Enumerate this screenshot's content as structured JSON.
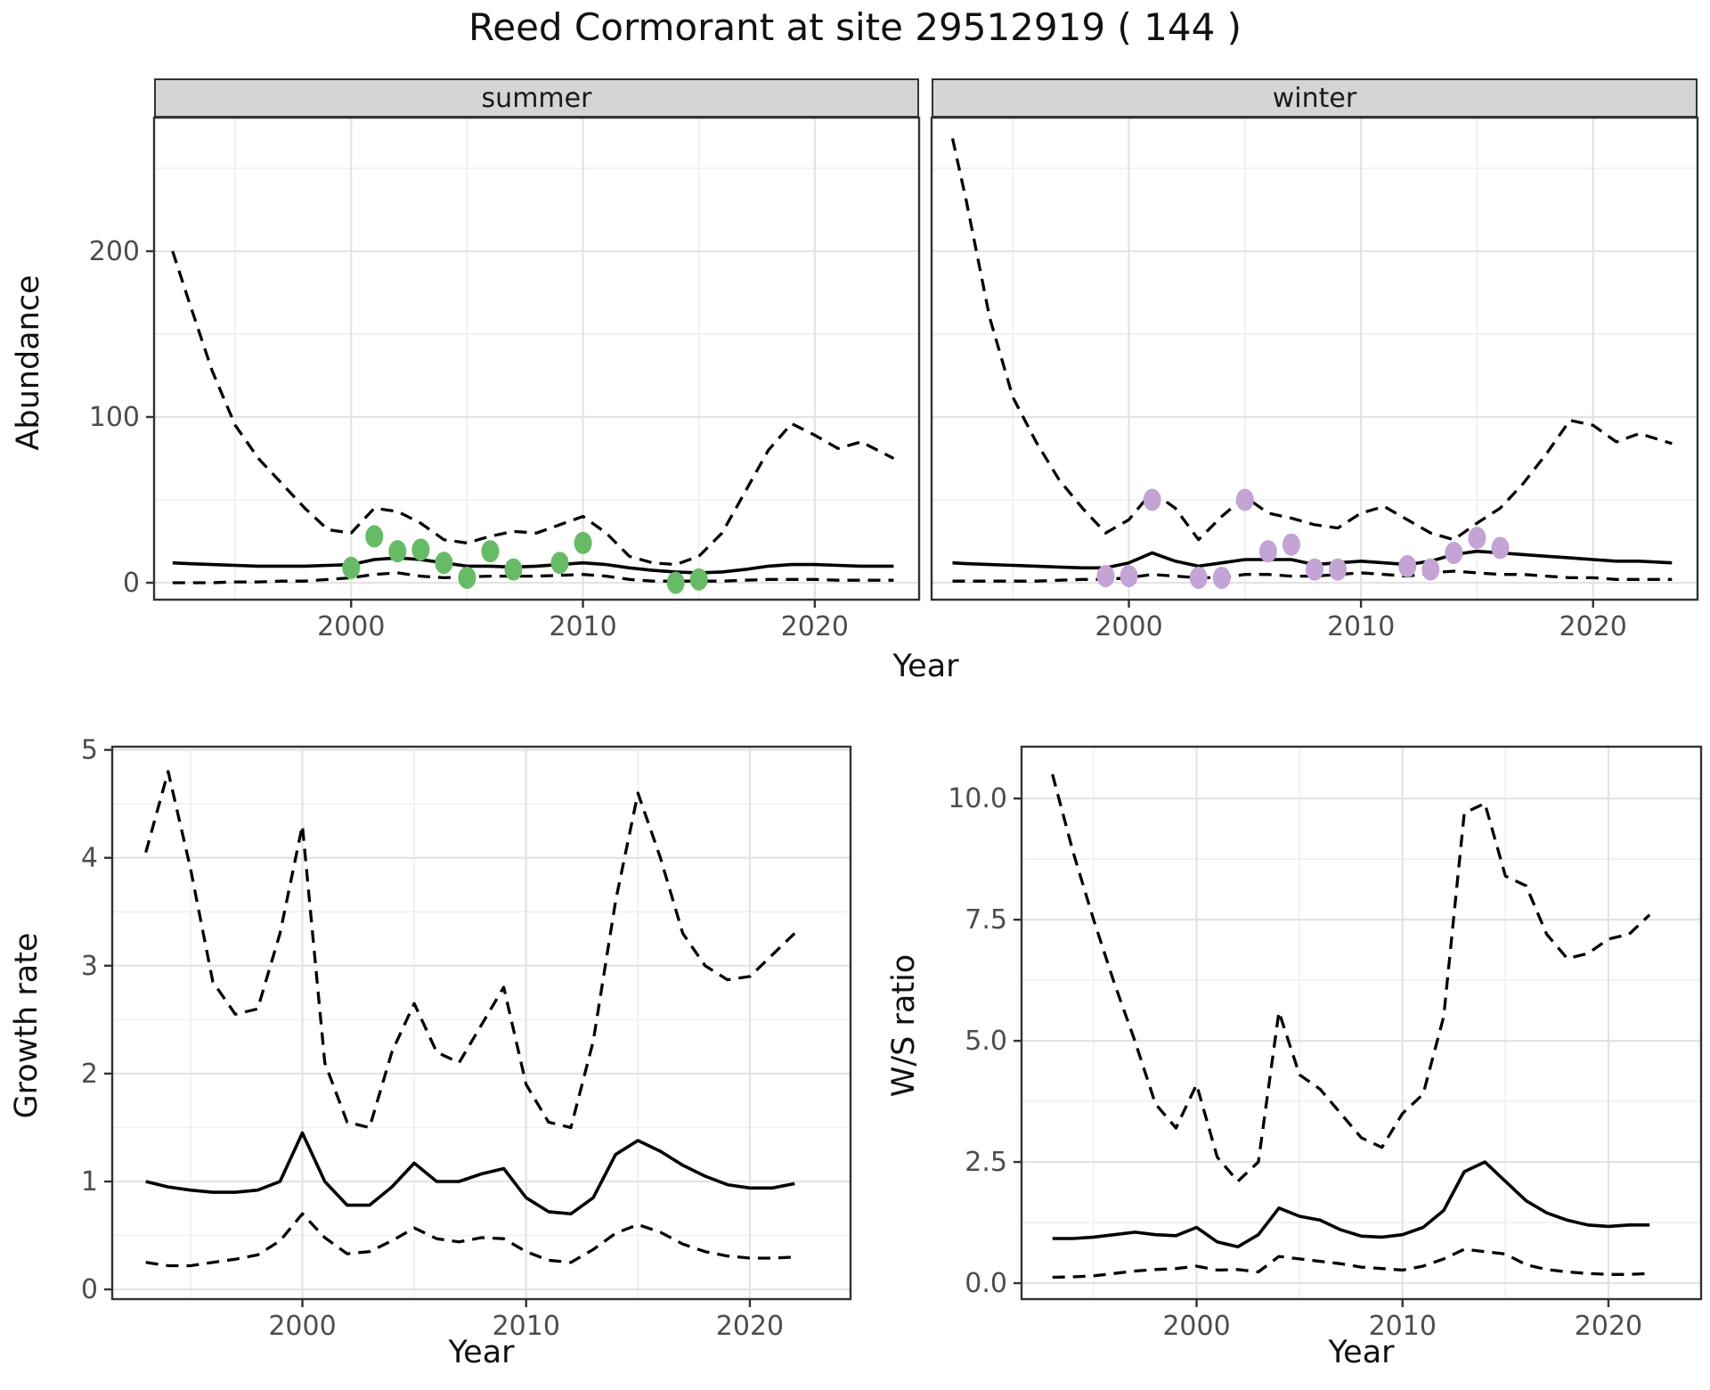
{
  "title": "Reed Cormorant at site 29512919 ( 144 )",
  "labels": {
    "year_axis_top": "Year",
    "year_axis_growth": "Year",
    "year_axis_ws": "Year",
    "abundance_axis": "Abundance",
    "growth_axis": "Growth rate",
    "ws_axis": "W/S ratio",
    "facet_summer": "summer",
    "facet_winter": "winter"
  },
  "colors": {
    "summer_point": "#67bb67",
    "winter_point": "#c3a4d5",
    "line": "#000000",
    "grid_major": "#e3e3e3",
    "grid_minor": "#efefef",
    "panel_border": "#333333",
    "strip_bg": "#d5d5d5",
    "tick_text": "#4d4d4d",
    "tick_mark": "#333333"
  },
  "chart_data": [
    {
      "id": "abundance_summer",
      "type": "line",
      "facet": "summer",
      "title": "Abundance — summer facet",
      "xlabel": "Year",
      "ylabel": "Abundance",
      "xlim": [
        1991.5,
        2024.5
      ],
      "ylim": [
        -10.2,
        280.6
      ],
      "x_ticks": [
        2000,
        2010,
        2020
      ],
      "x_tick_labels": [
        "2000",
        "2010",
        "2020"
      ],
      "x_minor_ticks": [
        1995,
        2005,
        2015
      ],
      "y_ticks": [
        0,
        100,
        200
      ],
      "y_tick_labels": [
        "0",
        "100",
        "200"
      ],
      "y_minor_ticks": [
        50,
        150,
        250
      ],
      "grid": true,
      "legend_position": "none",
      "series": [
        {
          "name": "upper_ci",
          "style": "dashed",
          "x": [
            1992.3,
            1993,
            1994,
            1995,
            1996,
            1997,
            1998,
            1999,
            2000,
            2001,
            2002,
            2003,
            2004,
            2005,
            2006,
            2007,
            2008,
            2009,
            2010,
            2011,
            2012,
            2013,
            2014,
            2015,
            2016,
            2017,
            2018,
            2019,
            2020,
            2021,
            2022,
            2023.4
          ],
          "y": [
            200,
            170,
            128,
            95,
            75,
            60,
            45,
            32,
            30,
            45,
            43,
            36,
            26,
            24,
            28,
            31,
            30,
            35,
            40,
            30,
            16,
            12,
            11,
            16,
            30,
            55,
            80,
            96,
            89,
            81,
            85,
            75
          ]
        },
        {
          "name": "median_fit",
          "style": "solid",
          "x": [
            1992.3,
            1993,
            1994,
            1995,
            1996,
            1997,
            1998,
            1999,
            2000,
            2001,
            2002,
            2003,
            2004,
            2005,
            2006,
            2007,
            2008,
            2009,
            2010,
            2011,
            2012,
            2013,
            2014,
            2015,
            2016,
            2017,
            2018,
            2019,
            2020,
            2021,
            2022,
            2023.4
          ],
          "y": [
            12,
            11.5,
            11,
            10.5,
            10,
            10,
            10,
            10.5,
            11,
            14,
            15,
            14,
            12,
            10,
            10,
            9.5,
            10,
            11,
            12,
            11,
            9,
            7.5,
            6.5,
            6,
            6.5,
            8,
            10,
            11,
            11,
            10.5,
            10,
            10
          ]
        },
        {
          "name": "lower_ci",
          "style": "dashed",
          "x": [
            1992.3,
            1993,
            1994,
            1995,
            1996,
            1997,
            1998,
            1999,
            2000,
            2001,
            2002,
            2003,
            2004,
            2005,
            2006,
            2007,
            2008,
            2009,
            2010,
            2011,
            2012,
            2013,
            2014,
            2015,
            2016,
            2017,
            2018,
            2019,
            2020,
            2021,
            2022,
            2023.4
          ],
          "y": [
            0,
            0,
            0,
            0.5,
            0.5,
            1,
            1,
            2,
            3,
            5,
            6,
            4,
            3,
            3.5,
            4,
            4,
            4,
            4.5,
            5,
            4,
            2,
            1,
            1,
            1,
            1,
            1.5,
            2,
            2,
            2,
            1.5,
            1.5,
            1.5
          ]
        }
      ],
      "points": {
        "name": "observed_counts_summer",
        "color_key": "summer_point",
        "x": [
          2000,
          2001,
          2002,
          2003,
          2004,
          2005,
          2006,
          2007,
          2009,
          2010,
          2014,
          2015
        ],
        "y": [
          9,
          28,
          19,
          20,
          12,
          3,
          19,
          8,
          12,
          24,
          0,
          2
        ]
      }
    },
    {
      "id": "abundance_winter",
      "type": "line",
      "facet": "winter",
      "title": "Abundance — winter facet",
      "xlabel": "Year",
      "ylabel": "Abundance",
      "xlim": [
        1991.5,
        2024.5
      ],
      "ylim": [
        -10.2,
        280.6
      ],
      "x_ticks": [
        2000,
        2010,
        2020
      ],
      "x_tick_labels": [
        "2000",
        "2010",
        "2020"
      ],
      "x_minor_ticks": [
        1995,
        2005,
        2015
      ],
      "y_ticks": [
        0,
        100,
        200
      ],
      "y_tick_labels": [
        "0",
        "100",
        "200"
      ],
      "y_minor_ticks": [
        50,
        150,
        250
      ],
      "grid": true,
      "legend_position": "none",
      "series": [
        {
          "name": "upper_ci",
          "style": "dashed",
          "x": [
            1992.4,
            1993,
            1994,
            1995,
            1996,
            1997,
            1998,
            1999,
            2000,
            2001,
            2002,
            2003,
            2004,
            2005,
            2006,
            2007,
            2008,
            2009,
            2010,
            2011,
            2012,
            2013,
            2014,
            2015,
            2016,
            2017,
            2018,
            2019,
            2020,
            2021,
            2022,
            2023.4
          ],
          "y": [
            268,
            230,
            160,
            112,
            85,
            62,
            45,
            30,
            38,
            55,
            45,
            26,
            40,
            52,
            42,
            39,
            35,
            33,
            42,
            46,
            38,
            30,
            26,
            36,
            45,
            60,
            78,
            98,
            95,
            85,
            90,
            84
          ]
        },
        {
          "name": "median_fit",
          "style": "solid",
          "x": [
            1992.4,
            1993,
            1994,
            1995,
            1996,
            1997,
            1998,
            1999,
            2000,
            2001,
            2002,
            2003,
            2004,
            2005,
            2006,
            2007,
            2008,
            2009,
            2010,
            2011,
            2012,
            2013,
            2014,
            2015,
            2016,
            2017,
            2018,
            2019,
            2020,
            2021,
            2022,
            2023.4
          ],
          "y": [
            12,
            11.5,
            11,
            10.5,
            10,
            9.5,
            9,
            9,
            12,
            18,
            13,
            10,
            12,
            14,
            14,
            14,
            11,
            12,
            13,
            12,
            11,
            13,
            17,
            19,
            18,
            17,
            16,
            15,
            14,
            13,
            13,
            12
          ]
        },
        {
          "name": "lower_ci",
          "style": "dashed",
          "x": [
            1992.4,
            1993,
            1994,
            1995,
            1996,
            1997,
            1998,
            1999,
            2000,
            2001,
            2002,
            2003,
            2004,
            2005,
            2006,
            2007,
            2008,
            2009,
            2010,
            2011,
            2012,
            2013,
            2014,
            2015,
            2016,
            2017,
            2018,
            2019,
            2020,
            2021,
            2022,
            2023.4
          ],
          "y": [
            1,
            1,
            1,
            1,
            1,
            1.5,
            2,
            2,
            3,
            5,
            4,
            3,
            3,
            5,
            5,
            4,
            4,
            5,
            6,
            5,
            4,
            6,
            7,
            6,
            5,
            5,
            4,
            3,
            3,
            2,
            2,
            2
          ]
        }
      ],
      "points": {
        "name": "observed_counts_winter",
        "color_key": "winter_point",
        "x": [
          1999,
          2000,
          2001,
          2003,
          2004,
          2005,
          2006,
          2007,
          2008,
          2009,
          2012,
          2013,
          2014,
          2015,
          2016
        ],
        "y": [
          4,
          4,
          50,
          3,
          3,
          50,
          19,
          23,
          8,
          8,
          10,
          8,
          18,
          27,
          21
        ]
      }
    },
    {
      "id": "growth_rate",
      "type": "line",
      "facet": null,
      "title": "Growth rate",
      "xlabel": "Year",
      "ylabel": "Growth rate",
      "xlim": [
        1991.5,
        2024.5
      ],
      "ylim": [
        -0.09,
        5.03
      ],
      "x_ticks": [
        2000,
        2010,
        2020
      ],
      "x_tick_labels": [
        "2000",
        "2010",
        "2020"
      ],
      "x_minor_ticks": [
        1995,
        2005,
        2015
      ],
      "y_ticks": [
        0,
        1,
        2,
        3,
        4,
        5
      ],
      "y_tick_labels": [
        "0",
        "1",
        "2",
        "3",
        "4",
        "5"
      ],
      "y_minor_ticks": [
        0.5,
        1.5,
        2.5,
        3.5,
        4.5
      ],
      "grid": true,
      "legend_position": "none",
      "series": [
        {
          "name": "upper_ci",
          "style": "dashed",
          "x": [
            1993,
            1994,
            1995,
            1996,
            1997,
            1998,
            1999,
            2000,
            2001,
            2002,
            2003,
            2004,
            2005,
            2006,
            2007,
            2008,
            2009,
            2010,
            2011,
            2012,
            2013,
            2014,
            2015,
            2016,
            2017,
            2018,
            2019,
            2020,
            2021,
            2022
          ],
          "y": [
            4.05,
            4.8,
            3.9,
            2.85,
            2.55,
            2.6,
            3.3,
            4.3,
            2.1,
            1.55,
            1.5,
            2.2,
            2.65,
            2.2,
            2.1,
            2.45,
            2.8,
            1.9,
            1.55,
            1.5,
            2.3,
            3.6,
            4.6,
            4.0,
            3.3,
            3.0,
            2.87,
            2.9,
            3.1,
            3.3
          ]
        },
        {
          "name": "median_fit",
          "style": "solid",
          "x": [
            1993,
            1994,
            1995,
            1996,
            1997,
            1998,
            1999,
            2000,
            2001,
            2002,
            2003,
            2004,
            2005,
            2006,
            2007,
            2008,
            2009,
            2010,
            2011,
            2012,
            2013,
            2014,
            2015,
            2016,
            2017,
            2018,
            2019,
            2020,
            2021,
            2022
          ],
          "y": [
            1.0,
            0.95,
            0.92,
            0.9,
            0.9,
            0.92,
            1.0,
            1.45,
            1.0,
            0.78,
            0.78,
            0.95,
            1.17,
            1.0,
            1.0,
            1.07,
            1.12,
            0.85,
            0.72,
            0.7,
            0.85,
            1.25,
            1.38,
            1.28,
            1.15,
            1.05,
            0.97,
            0.94,
            0.94,
            0.98
          ]
        },
        {
          "name": "lower_ci",
          "style": "dashed",
          "x": [
            1993,
            1994,
            1995,
            1996,
            1997,
            1998,
            1999,
            2000,
            2001,
            2002,
            2003,
            2004,
            2005,
            2006,
            2007,
            2008,
            2009,
            2010,
            2011,
            2012,
            2013,
            2014,
            2015,
            2016,
            2017,
            2018,
            2019,
            2020,
            2021,
            2022
          ],
          "y": [
            0.25,
            0.22,
            0.22,
            0.25,
            0.28,
            0.32,
            0.45,
            0.7,
            0.48,
            0.33,
            0.35,
            0.45,
            0.57,
            0.47,
            0.44,
            0.48,
            0.47,
            0.35,
            0.27,
            0.25,
            0.37,
            0.52,
            0.6,
            0.53,
            0.42,
            0.35,
            0.31,
            0.29,
            0.29,
            0.3
          ]
        }
      ],
      "points": null
    },
    {
      "id": "ws_ratio",
      "type": "line",
      "facet": null,
      "title": "W/S ratio",
      "xlabel": "Year",
      "ylabel": "W/S ratio",
      "xlim": [
        1991.5,
        2024.5
      ],
      "ylim": [
        -0.33,
        11.07
      ],
      "x_ticks": [
        2000,
        2010,
        2020
      ],
      "x_tick_labels": [
        "2000",
        "2010",
        "2020"
      ],
      "x_minor_ticks": [
        1995,
        2005,
        2015
      ],
      "y_ticks": [
        0,
        2.5,
        5,
        7.5,
        10
      ],
      "y_tick_labels": [
        "0.0",
        "2.5",
        "5.0",
        "7.5",
        "10.0"
      ],
      "y_minor_ticks": [
        1.25,
        3.75,
        6.25,
        8.75
      ],
      "grid": true,
      "legend_position": "none",
      "series": [
        {
          "name": "upper_ci",
          "style": "dashed",
          "x": [
            1993,
            1994,
            1995,
            1996,
            1997,
            1998,
            1999,
            2000,
            2001,
            2002,
            2003,
            2004,
            2005,
            2006,
            2007,
            2008,
            2009,
            2010,
            2011,
            2012,
            2013,
            2014,
            2015,
            2016,
            2017,
            2018,
            2019,
            2020,
            2021,
            2022
          ],
          "y": [
            10.5,
            8.9,
            7.5,
            6.2,
            5.0,
            3.7,
            3.2,
            4.1,
            2.6,
            2.1,
            2.5,
            5.6,
            4.3,
            4.0,
            3.5,
            3.0,
            2.8,
            3.5,
            3.9,
            5.5,
            9.7,
            9.9,
            8.4,
            8.2,
            7.2,
            6.7,
            6.8,
            7.1,
            7.2,
            7.6
          ]
        },
        {
          "name": "median_fit",
          "style": "solid",
          "x": [
            1993,
            1994,
            1995,
            1996,
            1997,
            1998,
            1999,
            2000,
            2001,
            2002,
            2003,
            2004,
            2005,
            2006,
            2007,
            2008,
            2009,
            2010,
            2011,
            2012,
            2013,
            2014,
            2015,
            2016,
            2017,
            2018,
            2019,
            2020,
            2021,
            2022
          ],
          "y": [
            0.92,
            0.92,
            0.95,
            1.0,
            1.05,
            1.0,
            0.98,
            1.15,
            0.85,
            0.75,
            1.0,
            1.55,
            1.38,
            1.3,
            1.1,
            0.97,
            0.95,
            1.0,
            1.15,
            1.5,
            2.3,
            2.5,
            2.1,
            1.7,
            1.45,
            1.3,
            1.2,
            1.17,
            1.2,
            1.2
          ]
        },
        {
          "name": "lower_ci",
          "style": "dashed",
          "x": [
            1993,
            1994,
            1995,
            1996,
            1997,
            1998,
            1999,
            2000,
            2001,
            2002,
            2003,
            2004,
            2005,
            2006,
            2007,
            2008,
            2009,
            2010,
            2011,
            2012,
            2013,
            2014,
            2015,
            2016,
            2017,
            2018,
            2019,
            2020,
            2021,
            2022
          ],
          "y": [
            0.12,
            0.13,
            0.15,
            0.2,
            0.25,
            0.28,
            0.3,
            0.35,
            0.27,
            0.28,
            0.23,
            0.55,
            0.5,
            0.45,
            0.4,
            0.33,
            0.3,
            0.27,
            0.35,
            0.5,
            0.7,
            0.65,
            0.6,
            0.38,
            0.28,
            0.23,
            0.2,
            0.18,
            0.18,
            0.2
          ]
        }
      ],
      "points": null
    }
  ]
}
